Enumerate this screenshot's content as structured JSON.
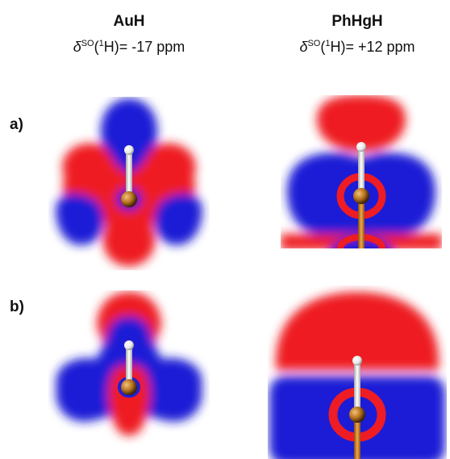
{
  "columns": [
    {
      "title": "AuH",
      "delta_value": "-17 ppm"
    },
    {
      "title": "PhHgH",
      "delta_value": "+12 ppm"
    }
  ],
  "delta_prefix": "δ",
  "delta_sup": "SO",
  "delta_nucleus_sup": "1",
  "delta_nucleus": "H",
  "rows": [
    {
      "label": "a)"
    },
    {
      "label": "b)"
    }
  ],
  "colors": {
    "positive": "#ee1c24",
    "negative": "#1f1fd6",
    "metal": "#b8731f",
    "hydrogen": "#f4f4f4"
  }
}
